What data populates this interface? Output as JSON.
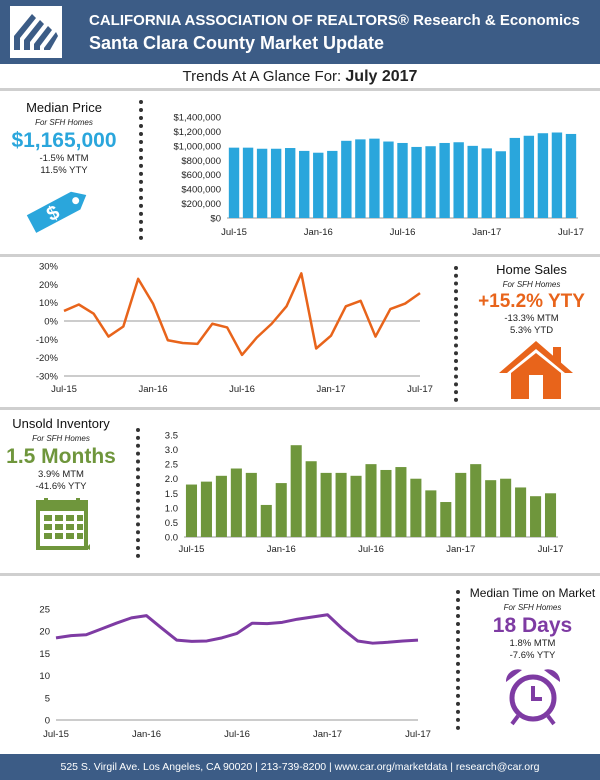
{
  "header": {
    "line1": "CALIFORNIA ASSOCIATION OF REALTORS® Research & Economics",
    "line2": "Santa Clara County Market Update"
  },
  "glance": {
    "label": "Trends At A Glance For:",
    "period": "July 2017"
  },
  "colors": {
    "header_bg": "#3c5c86",
    "price_blue": "#2aa6dc",
    "sales_orange": "#e8641b",
    "inventory_green": "#6f963c",
    "days_purple": "#7e3ba3"
  },
  "median_price": {
    "title": "Median Price",
    "subtitle": "For SFH Homes",
    "value": "$1,165,000",
    "mtm": "-1.5% MTM",
    "ytd": "11.5% YTY",
    "icon": "price-tag-icon"
  },
  "home_sales": {
    "title": "Home Sales",
    "subtitle": "For SFH Homes",
    "value": "+15.2% YTY",
    "mtm": "-13.3% MTM",
    "ytd": "5.3% YTD",
    "icon": "house-icon"
  },
  "inventory": {
    "title": "Unsold Inventory",
    "subtitle": "For SFH Homes",
    "value": "1.5 Months",
    "mtm": "3.9% MTM",
    "ytd": "-41.6% YTY",
    "icon": "calendar-icon"
  },
  "days_on_market": {
    "title": "Median Time on Market",
    "subtitle": "For SFH Homes",
    "value": "18 Days",
    "mtm": "1.8% MTM",
    "ytd": "-7.6% YTY",
    "icon": "alarm-clock-icon"
  },
  "chart_data": [
    {
      "type": "bar",
      "categories": [
        "Jul-15",
        "Aug-15",
        "Sep-15",
        "Oct-15",
        "Nov-15",
        "Dec-15",
        "Jan-16",
        "Feb-16",
        "Mar-16",
        "Apr-16",
        "May-16",
        "Jun-16",
        "Jul-16",
        "Aug-16",
        "Sep-16",
        "Oct-16",
        "Nov-16",
        "Dec-16",
        "Jan-17",
        "Feb-17",
        "Mar-17",
        "Apr-17",
        "May-17",
        "Jun-17",
        "Jul-17"
      ],
      "x_tick_labels": [
        "Jul-15",
        "Jan-16",
        "Jul-16",
        "Jan-17",
        "Jul-17"
      ],
      "values": [
        975000,
        975000,
        960000,
        960000,
        970000,
        930000,
        905000,
        930000,
        1070000,
        1090000,
        1100000,
        1060000,
        1040000,
        985000,
        995000,
        1040000,
        1050000,
        1000000,
        965000,
        925000,
        1110000,
        1140000,
        1175000,
        1185000,
        1165000
      ],
      "ylim": [
        0,
        1400000
      ],
      "y_tick_labels": [
        "$0",
        "$200,000",
        "$400,000",
        "$600,000",
        "$800,000",
        "$1,000,000",
        "$1,200,000",
        "$1,400,000"
      ],
      "grid": false
    },
    {
      "type": "line",
      "categories": [
        "Jul-15",
        "Aug-15",
        "Sep-15",
        "Oct-15",
        "Nov-15",
        "Dec-15",
        "Jan-16",
        "Feb-16",
        "Mar-16",
        "Apr-16",
        "May-16",
        "Jun-16",
        "Jul-16",
        "Aug-16",
        "Sep-16",
        "Oct-16",
        "Nov-16",
        "Dec-16",
        "Jan-17",
        "Feb-17",
        "Mar-17",
        "Apr-17",
        "May-17",
        "Jun-17",
        "Jul-17"
      ],
      "x_tick_labels": [
        "Jul-15",
        "Jan-16",
        "Jul-16",
        "Jan-17",
        "Jul-17"
      ],
      "values": [
        5.5,
        9,
        4,
        -8.5,
        -3,
        23,
        9.5,
        -10.5,
        -12,
        -12.5,
        -1.5,
        -3.5,
        -18.5,
        -9,
        -1.5,
        8,
        26,
        -15,
        -8,
        8,
        11,
        -8.5,
        6.5,
        9.5,
        15.2
      ],
      "ylim": [
        -30,
        30
      ],
      "y_tick_labels": [
        "30%",
        "20%",
        "10%",
        "0%",
        "-10%",
        "-20%",
        "-30%"
      ],
      "grid": false
    },
    {
      "type": "bar",
      "categories": [
        "Jul-15",
        "Aug-15",
        "Sep-15",
        "Oct-15",
        "Nov-15",
        "Dec-15",
        "Jan-16",
        "Feb-16",
        "Mar-16",
        "Apr-16",
        "May-16",
        "Jun-16",
        "Jul-16",
        "Aug-16",
        "Sep-16",
        "Oct-16",
        "Nov-16",
        "Dec-16",
        "Jan-17",
        "Feb-17",
        "Mar-17",
        "Apr-17",
        "May-17",
        "Jun-17",
        "Jul-17"
      ],
      "x_tick_labels": [
        "Jul-15",
        "Jan-16",
        "Jul-16",
        "Jan-17",
        "Jul-17"
      ],
      "values": [
        1.8,
        1.9,
        2.1,
        2.35,
        2.2,
        1.1,
        1.85,
        3.15,
        2.6,
        2.2,
        2.2,
        2.1,
        2.5,
        2.3,
        2.4,
        2.0,
        1.6,
        1.2,
        2.2,
        2.5,
        1.95,
        2.0,
        1.7,
        1.4,
        1.5
      ],
      "ylim": [
        0,
        3.5
      ],
      "y_tick_labels": [
        "0.0",
        "0.5",
        "1.0",
        "1.5",
        "2.0",
        "2.5",
        "3.0",
        "3.5"
      ],
      "grid": false
    },
    {
      "type": "line",
      "categories": [
        "Jul-15",
        "Aug-15",
        "Sep-15",
        "Oct-15",
        "Nov-15",
        "Dec-15",
        "Jan-16",
        "Feb-16",
        "Mar-16",
        "Apr-16",
        "May-16",
        "Jun-16",
        "Jul-16",
        "Aug-16",
        "Sep-16",
        "Oct-16",
        "Nov-16",
        "Dec-16",
        "Jan-17",
        "Feb-17",
        "Mar-17",
        "Apr-17",
        "May-17",
        "Jun-17",
        "Jul-17"
      ],
      "x_tick_labels": [
        "Jul-15",
        "Jan-16",
        "Jul-16",
        "Jan-17",
        "Jul-17"
      ],
      "values": [
        18.5,
        19,
        19.2,
        20.5,
        21.8,
        23,
        23.5,
        20.7,
        18,
        17.7,
        17.8,
        18.5,
        19.5,
        21.8,
        21.7,
        22,
        22.7,
        23.2,
        23.7,
        20.5,
        17.8,
        17.3,
        17.5,
        17.8,
        18
      ],
      "ylim": [
        0,
        25
      ],
      "y_tick_labels": [
        "0",
        "5",
        "10",
        "15",
        "20",
        "25"
      ],
      "grid": false
    }
  ],
  "footer": {
    "text": "525 S. Virgil Ave. Los Angeles, CA 90020 | 213-739-8200 | www.car.org/marketdata | research@car.org"
  }
}
